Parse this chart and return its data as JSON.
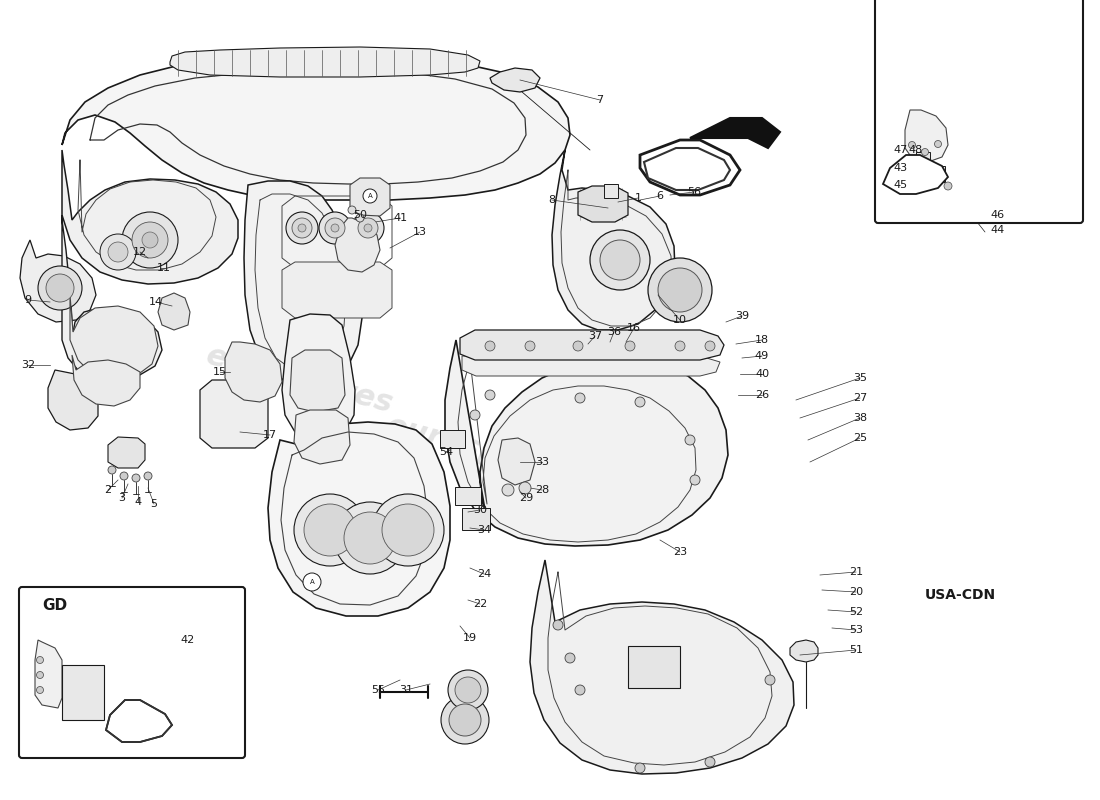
{
  "bg_color": "#ffffff",
  "watermark_text": "eurospares",
  "usa_cdn_label": "USA-CDN",
  "gd_label": "GD",
  "figw": 11.0,
  "figh": 8.0,
  "dpi": 100,
  "lc": "#1a1a1a",
  "lw_main": 1.0,
  "lw_thin": 0.6,
  "lw_label": 0.5
}
